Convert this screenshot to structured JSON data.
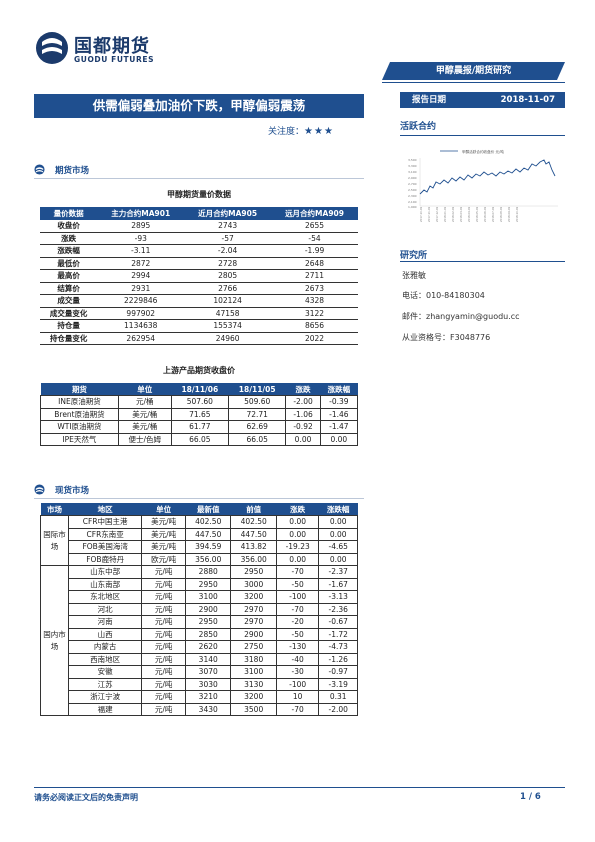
{
  "header": {
    "logo_cn": "国都期货",
    "logo_en": "GUODU FUTURES",
    "category": "甲醇晨报/期货研究",
    "title": "供需偏弱叠加油价下跌，甲醇偏弱震荡",
    "attention_label": "关注度：",
    "attention_stars": "★★★"
  },
  "sidebar": {
    "report_date_label": "报告日期",
    "report_date": "2018-11-07",
    "active_contract_title": "活跃合约",
    "mini_chart_legend": "甲醇活跃合约收盘价  元/吨",
    "research_title": "研究所",
    "analyst": "张雅敏",
    "phone": "电话：010-84180304",
    "email": "邮件：zhangyamin@guodu.cc",
    "license": "从业资格号：F3048776"
  },
  "futures_section": {
    "heading": "期货市场",
    "table1_caption": "甲醇期货量价数据",
    "table1_headers": [
      "量价数据",
      "主力合约MA901",
      "近月合约MA905",
      "远月合约MA909"
    ],
    "table1_rows": [
      [
        "收盘价",
        "2895",
        "2743",
        "2655"
      ],
      [
        "涨跌",
        "-93",
        "-57",
        "-54"
      ],
      [
        "涨跌幅",
        "-3.11",
        "-2.04",
        "-1.99"
      ],
      [
        "最低价",
        "2872",
        "2728",
        "2648"
      ],
      [
        "最高价",
        "2994",
        "2805",
        "2711"
      ],
      [
        "结算价",
        "2931",
        "2766",
        "2673"
      ],
      [
        "成交量",
        "2229846",
        "102124",
        "4328"
      ],
      [
        "成交量变化",
        "997902",
        "47158",
        "3122"
      ],
      [
        "持仓量",
        "1134638",
        "155374",
        "8656"
      ],
      [
        "持仓量变化",
        "262954",
        "24960",
        "2022"
      ]
    ],
    "table2_caption": "上游产品期货收盘价",
    "table2_headers": [
      "期货",
      "单位",
      "18/11/06",
      "18/11/05",
      "涨跌",
      "涨跌幅"
    ],
    "table2_rows": [
      [
        "INE原油期货",
        "元/桶",
        "507.60",
        "509.60",
        "-2.00",
        "-0.39"
      ],
      [
        "Brent原油期货",
        "美元/桶",
        "71.65",
        "72.71",
        "-1.06",
        "-1.46"
      ],
      [
        "WTI原油期货",
        "美元/桶",
        "61.77",
        "62.69",
        "-0.92",
        "-1.47"
      ],
      [
        "IPE天然气",
        "便士/色姆",
        "66.05",
        "66.05",
        "0.00",
        "0.00"
      ]
    ]
  },
  "spot_section": {
    "heading": "现货市场",
    "headers": [
      "市场",
      "地区",
      "单位",
      "最新值",
      "前值",
      "涨跌",
      "涨跌幅"
    ],
    "groups": [
      {
        "market": "国际市场",
        "rows": [
          [
            "CFR中国主港",
            "美元/吨",
            "402.50",
            "402.50",
            "0.00",
            "0.00"
          ],
          [
            "CFR东南亚",
            "美元/吨",
            "447.50",
            "447.50",
            "0.00",
            "0.00"
          ],
          [
            "FOB美国海湾",
            "美元/吨",
            "394.59",
            "413.82",
            "-19.23",
            "-4.65"
          ],
          [
            "FOB鹿特丹",
            "欧元/吨",
            "356.00",
            "356.00",
            "0.00",
            "0.00"
          ]
        ]
      },
      {
        "market": "国内市场",
        "rows": [
          [
            "山东中部",
            "元/吨",
            "2880",
            "2950",
            "-70",
            "-2.37"
          ],
          [
            "山东南部",
            "元/吨",
            "2950",
            "3000",
            "-50",
            "-1.67"
          ],
          [
            "东北地区",
            "元/吨",
            "3100",
            "3200",
            "-100",
            "-3.13"
          ],
          [
            "河北",
            "元/吨",
            "2900",
            "2970",
            "-70",
            "-2.36"
          ],
          [
            "河南",
            "元/吨",
            "2950",
            "2970",
            "-20",
            "-0.67"
          ],
          [
            "山西",
            "元/吨",
            "2850",
            "2900",
            "-50",
            "-1.72"
          ],
          [
            "内蒙古",
            "元/吨",
            "2620",
            "2750",
            "-130",
            "-4.73"
          ],
          [
            "西南地区",
            "元/吨",
            "3140",
            "3180",
            "-40",
            "-1.26"
          ],
          [
            "安徽",
            "元/吨",
            "3070",
            "3100",
            "-30",
            "-0.97"
          ],
          [
            "江苏",
            "元/吨",
            "3030",
            "3130",
            "-100",
            "-3.19"
          ],
          [
            "浙江宁波",
            "元/吨",
            "3210",
            "3200",
            "10",
            "0.31"
          ],
          [
            "福建",
            "元/吨",
            "3430",
            "3500",
            "-70",
            "-2.00"
          ]
        ]
      }
    ]
  },
  "footer": {
    "disclaimer": "请务必阅读正文后的免责声明",
    "page": "1 / 6"
  },
  "colors": {
    "brand": "#1f4f8f",
    "header_bg": "#1f4f8f"
  }
}
